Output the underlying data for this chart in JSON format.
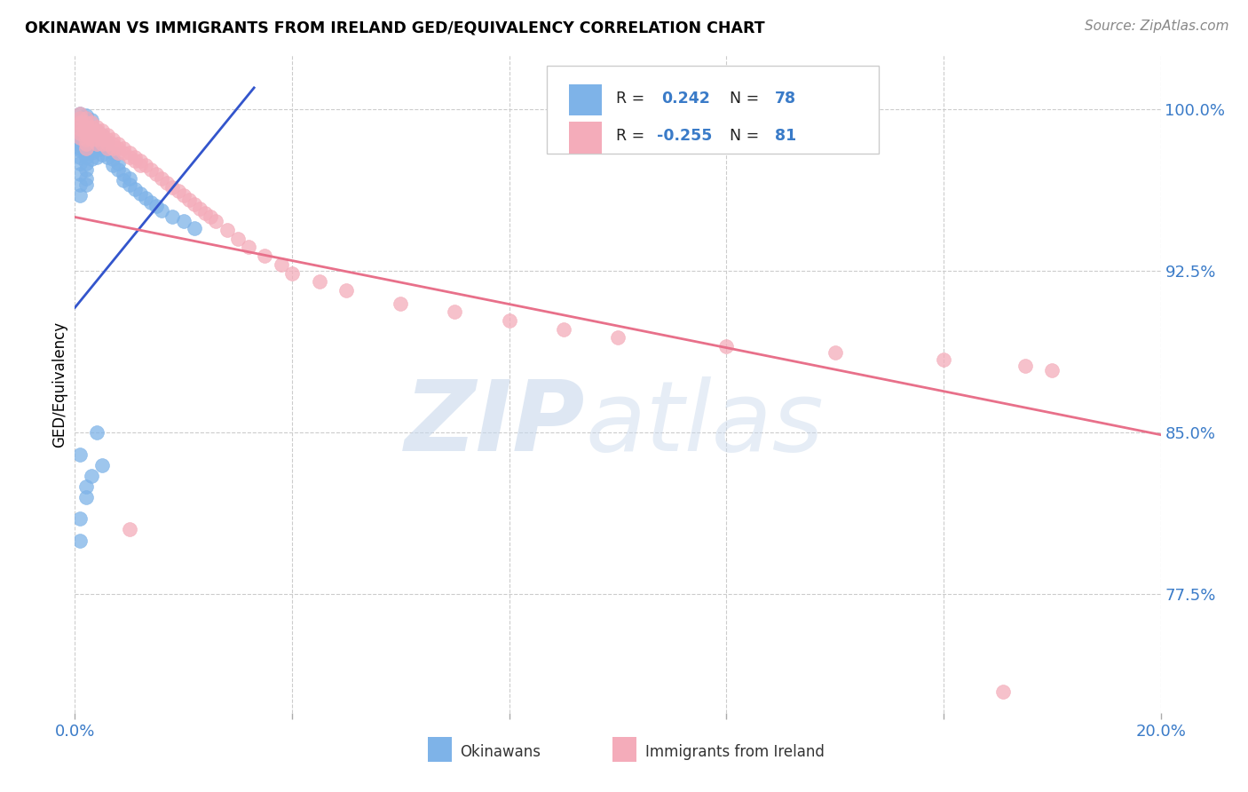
{
  "title": "OKINAWAN VS IMMIGRANTS FROM IRELAND GED/EQUIVALENCY CORRELATION CHART",
  "source": "Source: ZipAtlas.com",
  "ylabel": "GED/Equivalency",
  "yticks": [
    "77.5%",
    "85.0%",
    "92.5%",
    "100.0%"
  ],
  "ytick_vals": [
    0.775,
    0.85,
    0.925,
    1.0
  ],
  "xmin": 0.0,
  "xmax": 0.2,
  "ymin": 0.72,
  "ymax": 1.025,
  "okinawan_color": "#7EB3E8",
  "ireland_color": "#F4ACBA",
  "trendline_blue": "#3355CC",
  "trendline_pink": "#E8708A",
  "R_ok": 0.242,
  "N_ok": 78,
  "R_ir": -0.255,
  "N_ir": 81,
  "blue_trend_x0": 0.0,
  "blue_trend_y0": 0.908,
  "blue_trend_x1": 0.033,
  "blue_trend_y1": 1.01,
  "pink_trend_x0": 0.0,
  "pink_trend_y0": 0.95,
  "pink_trend_x1": 0.2,
  "pink_trend_y1": 0.849,
  "ok_x": [
    0.001,
    0.001,
    0.001,
    0.001,
    0.001,
    0.001,
    0.001,
    0.001,
    0.001,
    0.001,
    0.001,
    0.001,
    0.001,
    0.001,
    0.001,
    0.001,
    0.001,
    0.001,
    0.001,
    0.001,
    0.002,
    0.002,
    0.002,
    0.002,
    0.002,
    0.002,
    0.002,
    0.002,
    0.002,
    0.002,
    0.002,
    0.002,
    0.002,
    0.003,
    0.003,
    0.003,
    0.003,
    0.003,
    0.003,
    0.003,
    0.004,
    0.004,
    0.004,
    0.004,
    0.004,
    0.005,
    0.005,
    0.005,
    0.005,
    0.006,
    0.006,
    0.006,
    0.007,
    0.007,
    0.007,
    0.008,
    0.008,
    0.009,
    0.009,
    0.01,
    0.01,
    0.011,
    0.012,
    0.013,
    0.014,
    0.015,
    0.016,
    0.018,
    0.02,
    0.022,
    0.001,
    0.001,
    0.002,
    0.003,
    0.001,
    0.004,
    0.002,
    0.005
  ],
  "ok_y": [
    0.998,
    0.996,
    0.994,
    0.993,
    0.991,
    0.99,
    0.989,
    0.988,
    0.987,
    0.986,
    0.985,
    0.984,
    0.983,
    0.982,
    0.981,
    0.978,
    0.975,
    0.97,
    0.965,
    0.96,
    0.997,
    0.996,
    0.993,
    0.991,
    0.988,
    0.985,
    0.983,
    0.98,
    0.978,
    0.975,
    0.972,
    0.968,
    0.965,
    0.995,
    0.992,
    0.989,
    0.986,
    0.983,
    0.98,
    0.977,
    0.99,
    0.987,
    0.984,
    0.981,
    0.978,
    0.988,
    0.985,
    0.982,
    0.979,
    0.985,
    0.982,
    0.978,
    0.98,
    0.977,
    0.974,
    0.975,
    0.972,
    0.97,
    0.967,
    0.968,
    0.965,
    0.963,
    0.961,
    0.959,
    0.957,
    0.955,
    0.953,
    0.95,
    0.948,
    0.945,
    0.81,
    0.8,
    0.82,
    0.83,
    0.84,
    0.85,
    0.825,
    0.835
  ],
  "ir_x": [
    0.001,
    0.001,
    0.001,
    0.001,
    0.001,
    0.001,
    0.001,
    0.002,
    0.002,
    0.002,
    0.002,
    0.002,
    0.002,
    0.002,
    0.002,
    0.003,
    0.003,
    0.003,
    0.003,
    0.003,
    0.004,
    0.004,
    0.004,
    0.004,
    0.004,
    0.005,
    0.005,
    0.005,
    0.005,
    0.006,
    0.006,
    0.006,
    0.006,
    0.007,
    0.007,
    0.007,
    0.008,
    0.008,
    0.008,
    0.009,
    0.009,
    0.01,
    0.01,
    0.011,
    0.011,
    0.012,
    0.012,
    0.013,
    0.014,
    0.015,
    0.016,
    0.017,
    0.018,
    0.019,
    0.02,
    0.021,
    0.022,
    0.023,
    0.024,
    0.025,
    0.026,
    0.028,
    0.03,
    0.032,
    0.035,
    0.038,
    0.04,
    0.045,
    0.05,
    0.06,
    0.07,
    0.08,
    0.09,
    0.1,
    0.12,
    0.14,
    0.16,
    0.171,
    0.175,
    0.18,
    0.01
  ],
  "ir_y": [
    0.998,
    0.996,
    0.994,
    0.993,
    0.991,
    0.989,
    0.987,
    0.996,
    0.994,
    0.992,
    0.99,
    0.988,
    0.986,
    0.984,
    0.982,
    0.994,
    0.992,
    0.99,
    0.988,
    0.986,
    0.992,
    0.99,
    0.988,
    0.986,
    0.984,
    0.99,
    0.988,
    0.986,
    0.984,
    0.988,
    0.986,
    0.984,
    0.982,
    0.986,
    0.984,
    0.982,
    0.984,
    0.982,
    0.98,
    0.982,
    0.98,
    0.98,
    0.978,
    0.978,
    0.976,
    0.976,
    0.974,
    0.974,
    0.972,
    0.97,
    0.968,
    0.966,
    0.964,
    0.962,
    0.96,
    0.958,
    0.956,
    0.954,
    0.952,
    0.95,
    0.948,
    0.944,
    0.94,
    0.936,
    0.932,
    0.928,
    0.924,
    0.92,
    0.916,
    0.91,
    0.906,
    0.902,
    0.898,
    0.894,
    0.89,
    0.887,
    0.884,
    0.73,
    0.881,
    0.879,
    0.805
  ]
}
